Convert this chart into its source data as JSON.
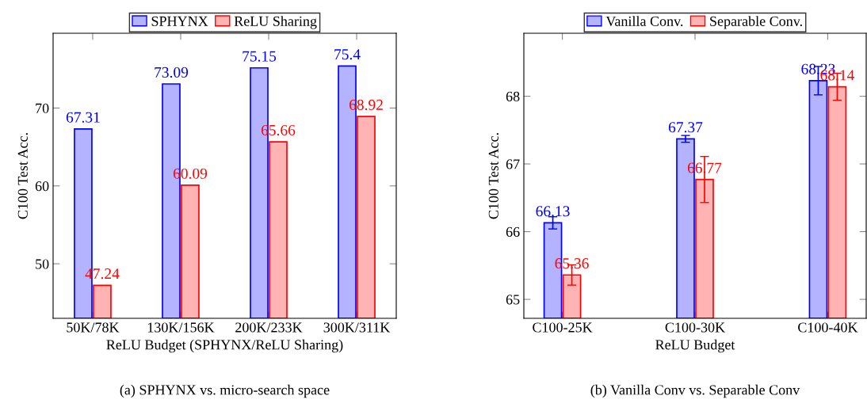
{
  "chart_data": [
    {
      "type": "bar",
      "categories": [
        "50K/78K",
        "130K/156K",
        "200K/233K",
        "300K/311K"
      ],
      "xlabel": "ReLU Budget (SPHYNX/ReLU Sharing)",
      "ylabel": "C100 Test Acc.",
      "ylim": [
        43,
        79.6
      ],
      "yticks": [
        50,
        60,
        70
      ],
      "legend": "top",
      "data_labels": true,
      "annotations": [
        "(a) SPHYNX vs. micro-search space"
      ],
      "series": [
        {
          "name": "SPHYNX",
          "color": "#b3b3ff",
          "values": [
            67.31,
            73.09,
            75.15,
            75.4
          ]
        },
        {
          "name": "ReLU Sharing",
          "color": "#ffb3b3",
          "values": [
            47.24,
            60.09,
            65.66,
            68.92
          ]
        }
      ]
    },
    {
      "type": "bar",
      "categories": [
        "C100-25K",
        "C100-30K",
        "C100-40K"
      ],
      "xlabel": "ReLU Budget",
      "ylabel": "C100 Test Acc.",
      "ylim": [
        64.72,
        68.93
      ],
      "yticks": [
        65,
        66,
        67,
        68
      ],
      "legend": "top",
      "data_labels": true,
      "annotations": [
        "(b) Vanilla Conv vs. Separable Conv"
      ],
      "series": [
        {
          "name": "Vanilla Conv.",
          "color": "#b3b3ff",
          "values": [
            66.13,
            67.37,
            68.23
          ],
          "errors": [
            0.09,
            0.05,
            0.21
          ]
        },
        {
          "name": "Separable Conv.",
          "color": "#ffb3b3",
          "values": [
            65.36,
            66.77,
            68.14
          ],
          "errors": [
            0.15,
            0.34,
            0.2
          ]
        }
      ]
    }
  ]
}
